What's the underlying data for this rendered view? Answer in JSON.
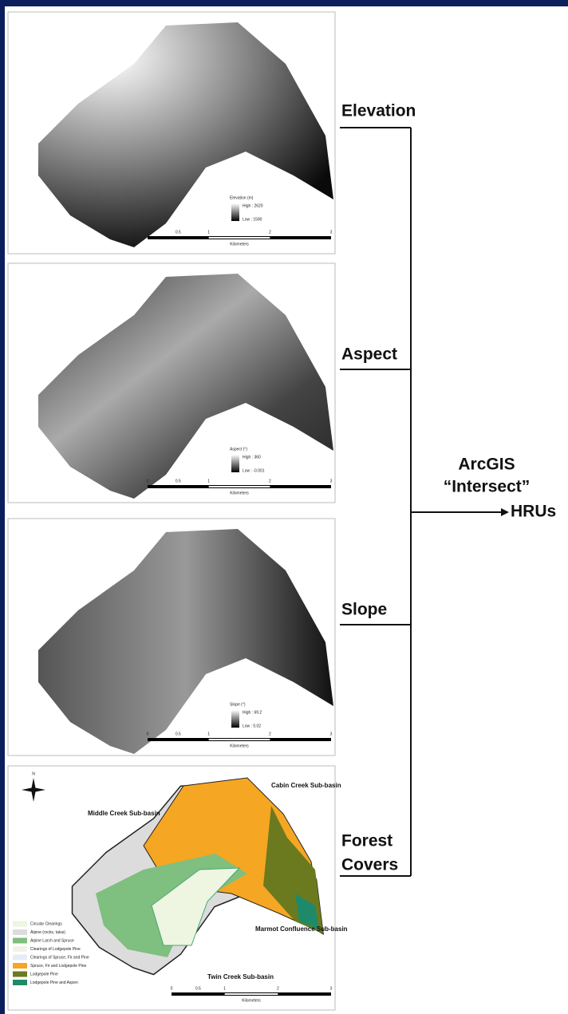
{
  "panels": [
    {
      "label": [
        "Elevation"
      ],
      "legend_title": "Elevation (m)",
      "legend_high": "High : 2620",
      "legend_low": "Low : 1590",
      "scale_ticks": [
        "0",
        "0.5",
        "1",
        "2",
        "3"
      ],
      "scale_unit": "Kilometers"
    },
    {
      "label": [
        "Aspect"
      ],
      "legend_title": "Aspect (°)",
      "legend_high": "High : 360",
      "legend_low": "Low : -0.001",
      "scale_ticks": [
        "0",
        "0.5",
        "1",
        "2",
        "3"
      ],
      "scale_unit": "Kilometers"
    },
    {
      "label": [
        "Slope"
      ],
      "legend_title": "Slope (°)",
      "legend_high": "High : 69.2",
      "legend_low": "Low : 0.02",
      "scale_ticks": [
        "0",
        "0.5",
        "1",
        "2",
        "3"
      ],
      "scale_unit": "Kilometers"
    },
    {
      "label": [
        "Forest",
        "Covers"
      ],
      "north": "N",
      "scale_ticks": [
        "0",
        "0.5",
        "1",
        "2",
        "3"
      ],
      "scale_unit": "Kilometers",
      "subbasins": [
        "Cabin Creek Sub-basin",
        "Middle Creek Sub-basin",
        "Twin Creek Sub-basin",
        "Marmot Confluence Sub-basin"
      ],
      "legend": [
        {
          "name": "Circular Clearings",
          "color": "#eef5e0"
        },
        {
          "name": "Alpine (rocks, talus)",
          "color": "#dcdcdc"
        },
        {
          "name": "Alpine Larch and Spruce",
          "color": "#7fbf7f"
        },
        {
          "name": "Clearings of Lodgepole Pine",
          "color": "#f2f2e6"
        },
        {
          "name": "Clearings of Spruce, Fir and Pine",
          "color": "#e6ecf5"
        },
        {
          "name": "Spruce, Fir and Lodgepole Pine",
          "color": "#f5a623"
        },
        {
          "name": "Lodgepole Pine",
          "color": "#6b7a1e"
        },
        {
          "name": "Lodgepole Pine and Aspen",
          "color": "#1f8a6a"
        }
      ]
    }
  ],
  "operation": [
    "ArcGIS",
    "“Intersect”"
  ],
  "output": "HRUs"
}
